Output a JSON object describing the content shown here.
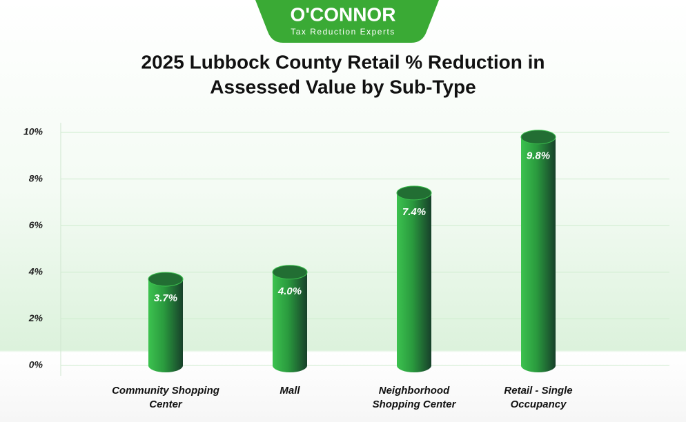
{
  "brand": {
    "name": "O'CONNOR",
    "tagline": "Tax Reduction Experts"
  },
  "chart_data": {
    "type": "bar",
    "title": [
      "2025 Lubbock County Retail % Reduction in",
      "Assessed Value by Sub-Type"
    ],
    "categories": [
      "Community Shopping Center",
      "Mall",
      "Neighborhood Shopping Center",
      "Retail - Single Occupancy"
    ],
    "values": [
      3.7,
      4.0,
      7.4,
      9.8
    ],
    "value_labels": [
      "3.7%",
      "4.0%",
      "7.4%",
      "9.8%"
    ],
    "color": "#2a9a3e",
    "ylim": [
      0,
      10
    ],
    "yticks": [
      {
        "value": 0,
        "label": "0%"
      },
      {
        "value": 2,
        "label": "2%"
      },
      {
        "value": 4,
        "label": "4%"
      },
      {
        "value": 6,
        "label": "6%"
      },
      {
        "value": 8,
        "label": "8%"
      },
      {
        "value": 10,
        "label": "10%"
      }
    ],
    "grid": true
  }
}
